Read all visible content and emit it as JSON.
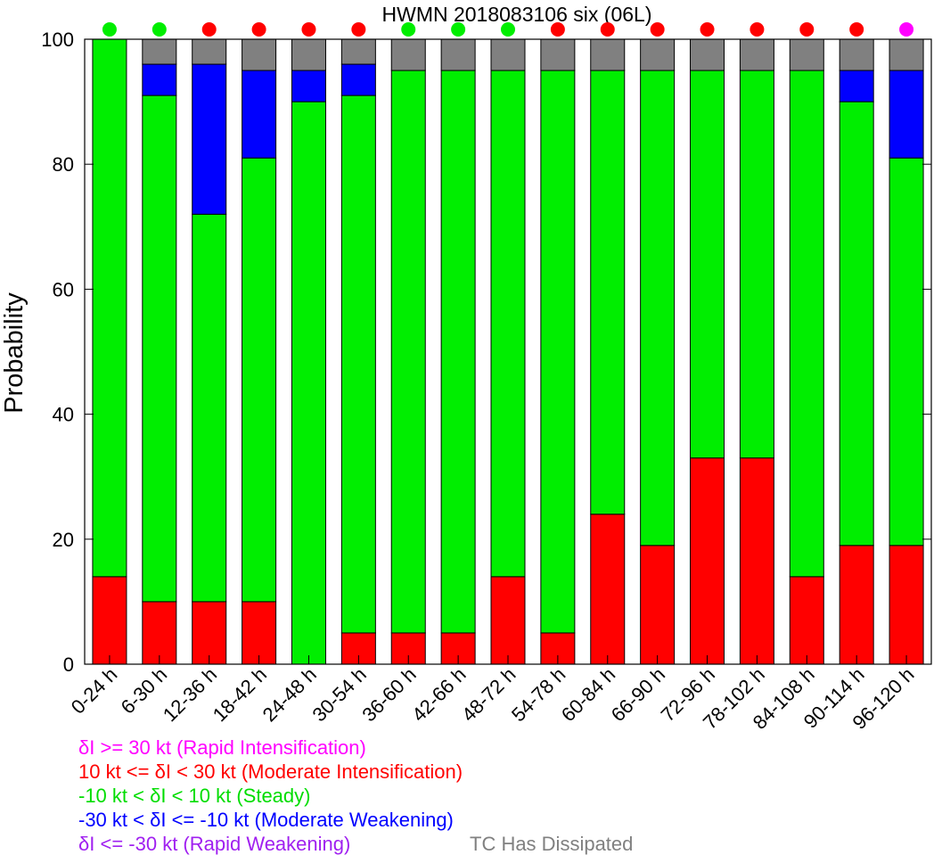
{
  "chart_data": {
    "type": "bar",
    "stacked": true,
    "title": "HWMN 2018083106 six (06L)",
    "xlabel": "",
    "ylabel": "Probability",
    "ylim": [
      0,
      100
    ],
    "yticks": [
      0,
      20,
      40,
      60,
      80,
      100
    ],
    "grid": false,
    "categories": [
      "0-24 h",
      "6-30 h",
      "12-36 h",
      "18-42 h",
      "24-48 h",
      "30-54 h",
      "36-60 h",
      "42-66 h",
      "48-72 h",
      "54-78 h",
      "60-84 h",
      "66-90 h",
      "72-96 h",
      "78-102 h",
      "84-108 h",
      "90-114 h",
      "96-120 h"
    ],
    "series": [
      {
        "name": "10 kt <= δI < 30 kt (Moderate Intensification)",
        "color": "#ff0000",
        "values": [
          14,
          10,
          10,
          10,
          0,
          5,
          5,
          5,
          14,
          5,
          24,
          19,
          33,
          33,
          14,
          19,
          19
        ]
      },
      {
        "name": "-10 kt < δI < 10 kt (Steady)",
        "color": "#00ee00",
        "values": [
          86,
          81,
          62,
          71,
          90,
          86,
          90,
          90,
          81,
          90,
          71,
          76,
          62,
          62,
          81,
          71,
          62
        ]
      },
      {
        "name": "-30 kt < δI <= -10 kt (Moderate Weakening)",
        "color": "#0000ff",
        "values": [
          0,
          5,
          24,
          14,
          5,
          5,
          0,
          0,
          0,
          0,
          0,
          0,
          0,
          0,
          0,
          5,
          14
        ]
      },
      {
        "name": "TC Has Dissipated",
        "color": "#808080",
        "values": [
          0,
          4,
          4,
          5,
          5,
          4,
          5,
          5,
          5,
          5,
          5,
          5,
          5,
          5,
          5,
          5,
          5
        ]
      }
    ],
    "indicators": [
      "#00ee00",
      "#00ee00",
      "#ff0000",
      "#ff0000",
      "#ff0000",
      "#ff0000",
      "#00ee00",
      "#00ee00",
      "#00ee00",
      "#ff0000",
      "#ff0000",
      "#ff0000",
      "#ff0000",
      "#ff0000",
      "#ff0000",
      "#ff0000",
      "#ff00ff"
    ],
    "legend": [
      {
        "text": "δI >= 30 kt (Rapid Intensification)",
        "color": "#ff00ff"
      },
      {
        "text": "10 kt <= δI < 30 kt (Moderate Intensification)",
        "color": "#ff0000"
      },
      {
        "text": "-10 kt < δI < 10 kt (Steady)",
        "color": "#00dd00"
      },
      {
        "text": "-30 kt < δI <= -10 kt (Moderate Weakening)",
        "color": "#0000ff"
      },
      {
        "text": "δI <= -30 kt (Rapid Weakening)",
        "color": "#a020f0"
      }
    ],
    "legend_dissipated": {
      "text": "TC Has Dissipated",
      "color": "#808080"
    }
  }
}
